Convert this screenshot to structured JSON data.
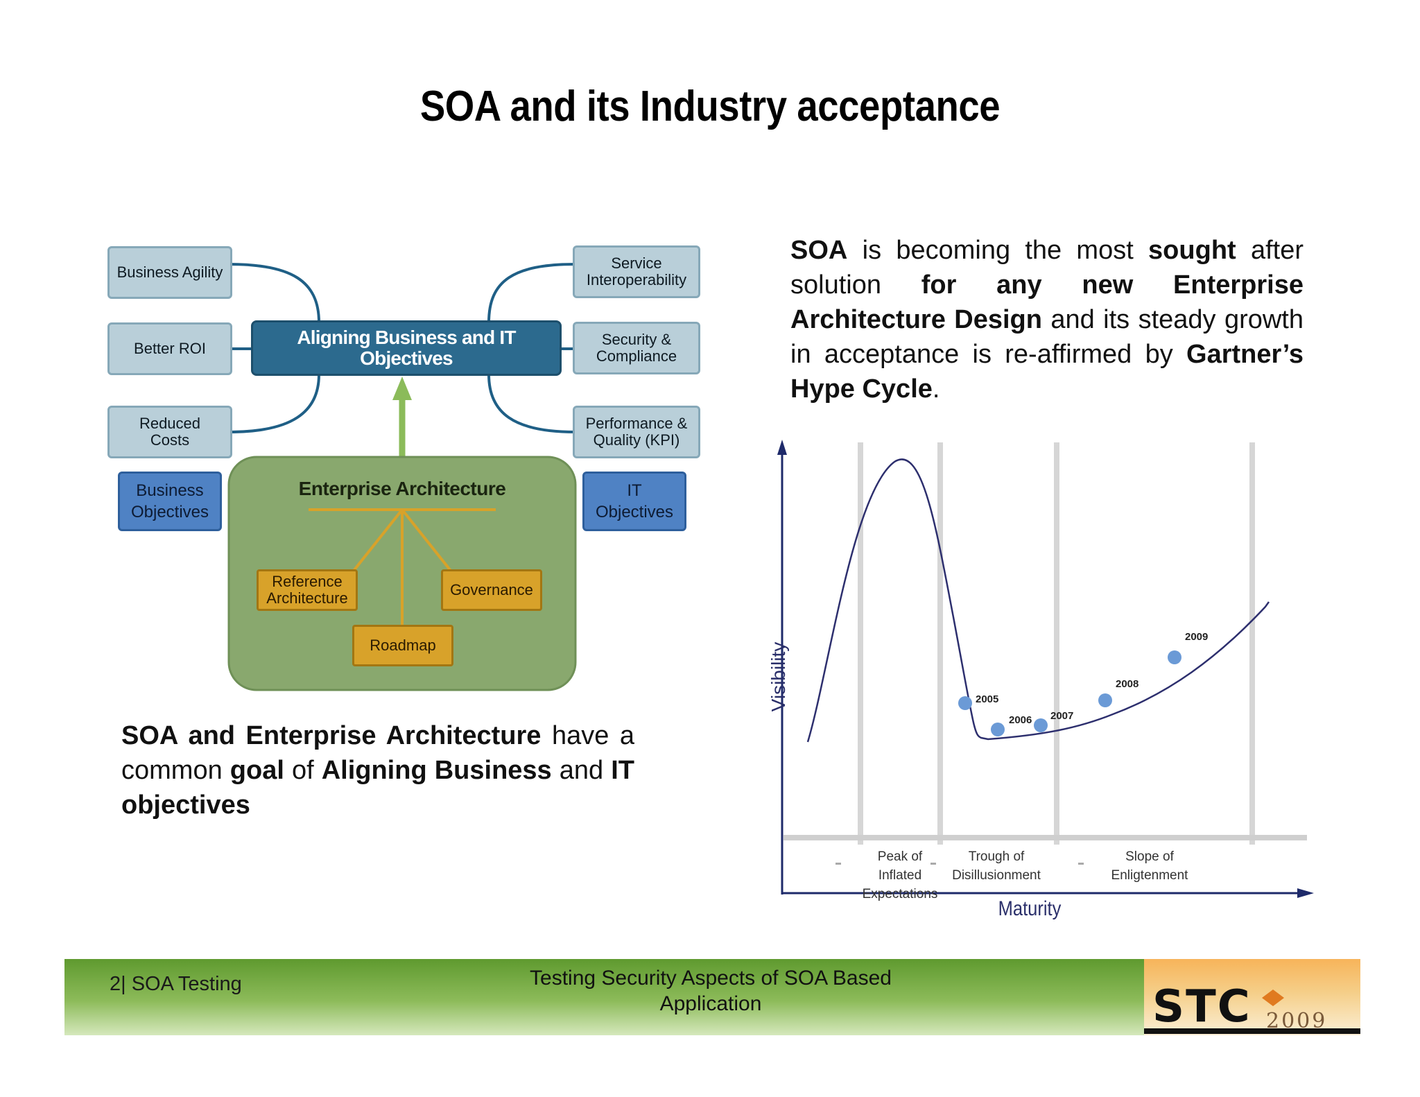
{
  "title": "SOA and its Industry acceptance",
  "diagram": {
    "center_label": "Aligning Business and IT Objectives",
    "left_items": [
      "Business Agility",
      "Better ROI",
      "Reduced Costs"
    ],
    "right_items": [
      "Service Interoperability",
      "Security & Compliance",
      "Performance & Quality (KPI)"
    ],
    "business_objectives": "Business Objectives",
    "it_objectives": "IT Objectives",
    "ea_title": "Enterprise Architecture",
    "ea_items": [
      "Reference Architecture",
      "Governance",
      "Roadmap"
    ],
    "colors": {
      "center": "#2c6a8e",
      "ea_panel": "#89a86e",
      "gold": "#d8a22a",
      "arrow": "#8bbb5a"
    }
  },
  "left_paragraph": {
    "p1": "SOA and Enterprise Architecture",
    "p2": " have a common ",
    "p3": "goal",
    "p4": " of ",
    "p5": "Aligning Business",
    "p6": " and ",
    "p7": "IT objectives"
  },
  "right_paragraph": {
    "p1": "SOA",
    "p2": " is becoming the most ",
    "p3": "sought",
    "p4": " after solution ",
    "p5": "for any new Enterprise Architecture Design",
    "p6": " and its steady growth in acceptance is re-affirmed by ",
    "p7": "Gartner’s Hype Cycle",
    "p8": "."
  },
  "hype_cycle": {
    "y_axis_label": "Visibility",
    "x_axis_label": "Maturity",
    "phases": [
      "Peak of Inflated Expectations",
      "Trough of Disillusionment",
      "Slope of Enligtenment"
    ],
    "points": [
      "2005",
      "2006",
      "2007",
      "2008",
      "2009"
    ]
  },
  "footer": {
    "page_ref": "2| SOA Testing",
    "center_line1": "Testing Security Aspects of SOA Based",
    "center_line2": "Application",
    "logo_text": "STC",
    "logo_year": "2009"
  }
}
